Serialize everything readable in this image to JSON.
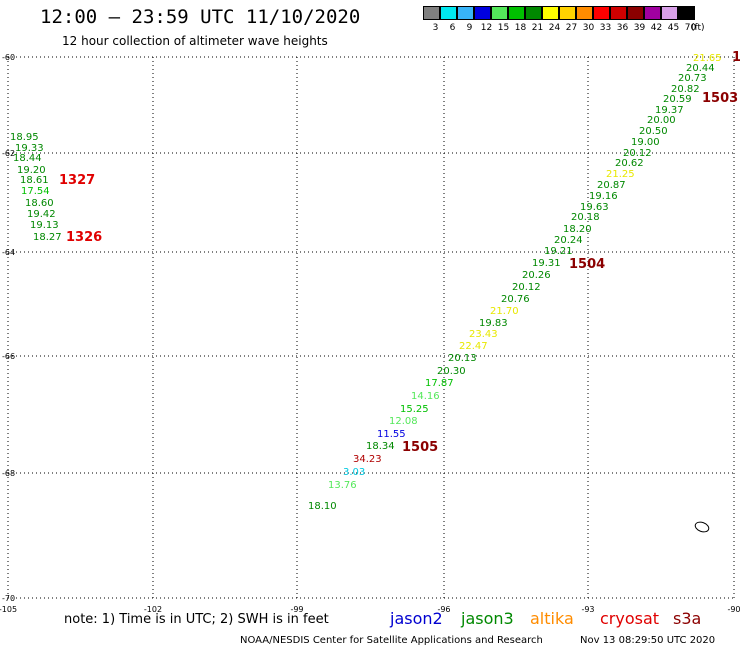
{
  "title": "12:00 – 23:59 UTC 11/10/2020",
  "subtitle": "12 hour collection of altimeter wave heights",
  "legend_scale": {
    "unit": "(ft)",
    "bins": [
      {
        "label": "3",
        "color": "#808080"
      },
      {
        "label": "6",
        "color": "#00e8f0"
      },
      {
        "label": "9",
        "color": "#38b4f8"
      },
      {
        "label": "12",
        "color": "#0000e0"
      },
      {
        "label": "15",
        "color": "#54e85a"
      },
      {
        "label": "18",
        "color": "#00c000"
      },
      {
        "label": "21",
        "color": "#008800"
      },
      {
        "label": "24",
        "color": "#ffff00"
      },
      {
        "label": "27",
        "color": "#ffd200"
      },
      {
        "label": "30",
        "color": "#ff8c00"
      },
      {
        "label": "33",
        "color": "#ff0000"
      },
      {
        "label": "36",
        "color": "#d00000"
      },
      {
        "label": "39",
        "color": "#8b0000"
      },
      {
        "label": "42",
        "color": "#a000a0"
      },
      {
        "label": "45",
        "color": "#d8a0e8"
      },
      {
        "label": "70",
        "color": "#000000"
      }
    ]
  },
  "axes": {
    "lat_labels": [
      "-60",
      "-62",
      "-64",
      "-66",
      "-68",
      "-70"
    ],
    "lon_labels": [
      "-105",
      "-102",
      "-99",
      "-96",
      "-93",
      "-90"
    ]
  },
  "observations": [
    {
      "text": "18.95",
      "color": "#008800"
    },
    {
      "text": "19.33",
      "color": "#008800"
    },
    {
      "text": "18.44",
      "color": "#008800"
    },
    {
      "text": "19.20",
      "color": "#008800"
    },
    {
      "text": "18.61",
      "color": "#008800"
    },
    {
      "text": "17.54",
      "color": "#00c000"
    },
    {
      "text": "18.60",
      "color": "#008800"
    },
    {
      "text": "19.42",
      "color": "#008800"
    },
    {
      "text": "19.13",
      "color": "#008800"
    },
    {
      "text": "18.27",
      "color": "#008800"
    },
    {
      "text": "21.65",
      "color": "#e8e800"
    },
    {
      "text": "20.44",
      "color": "#008800"
    },
    {
      "text": "20.73",
      "color": "#008800"
    },
    {
      "text": "20.82",
      "color": "#008800"
    },
    {
      "text": "20.59",
      "color": "#008800"
    },
    {
      "text": "19.37",
      "color": "#008800"
    },
    {
      "text": "20.00",
      "color": "#008800"
    },
    {
      "text": "20.50",
      "color": "#008800"
    },
    {
      "text": "19.00",
      "color": "#008800"
    },
    {
      "text": "20.12",
      "color": "#008800"
    },
    {
      "text": "20.62",
      "color": "#008800"
    },
    {
      "text": "21.25",
      "color": "#e8e800"
    },
    {
      "text": "20.87",
      "color": "#008800"
    },
    {
      "text": "19.16",
      "color": "#008800"
    },
    {
      "text": "19.63",
      "color": "#008800"
    },
    {
      "text": "20.18",
      "color": "#008800"
    },
    {
      "text": "18.20",
      "color": "#008800"
    },
    {
      "text": "20.24",
      "color": "#008800"
    },
    {
      "text": "19.21",
      "color": "#008800"
    },
    {
      "text": "19.31",
      "color": "#008800"
    },
    {
      "text": "20.26",
      "color": "#008800"
    },
    {
      "text": "20.12",
      "color": "#008800"
    },
    {
      "text": "20.76",
      "color": "#008800"
    },
    {
      "text": "21.70",
      "color": "#e8e800"
    },
    {
      "text": "19.83",
      "color": "#008800"
    },
    {
      "text": "23.43",
      "color": "#e8e800"
    },
    {
      "text": "22.47",
      "color": "#e8e800"
    },
    {
      "text": "20.13",
      "color": "#008800"
    },
    {
      "text": "20.30",
      "color": "#008800"
    },
    {
      "text": "17.87",
      "color": "#00c000"
    },
    {
      "text": "14.16",
      "color": "#54e85a"
    },
    {
      "text": "15.25",
      "color": "#00c000"
    },
    {
      "text": "12.08",
      "color": "#54e85a"
    },
    {
      "text": "11.55",
      "color": "#0000e0"
    },
    {
      "text": "18.34",
      "color": "#008800"
    },
    {
      "text": "34.23",
      "color": "#b00000"
    },
    {
      "text": "3.03",
      "color": "#00c8e0"
    },
    {
      "text": "13.76",
      "color": "#54e85a"
    },
    {
      "text": "18.10",
      "color": "#008800"
    }
  ],
  "time_markers": [
    {
      "text": "1327",
      "color": "#e00000"
    },
    {
      "text": "1326",
      "color": "#e00000"
    },
    {
      "text": "1503",
      "color": "#8b0000"
    },
    {
      "text": "1504",
      "color": "#8b0000"
    },
    {
      "text": "1505",
      "color": "#8b0000"
    },
    {
      "text": "1",
      "color": "#8b0000"
    }
  ],
  "note": "note:  1) Time is in UTC;  2) SWH is in feet",
  "satellites": [
    {
      "name": "jason2",
      "color": "#0000d0"
    },
    {
      "name": "jason3",
      "color": "#008800"
    },
    {
      "name": "altika",
      "color": "#ff8c00"
    },
    {
      "name": "cryosat",
      "color": "#e00000"
    },
    {
      "name": "s3a",
      "color": "#8b0000"
    }
  ],
  "footer_left": "NOAA/NESDIS Center for Satellite Applications and Research",
  "footer_right": "Nov 13 08:29:50 UTC 2020"
}
